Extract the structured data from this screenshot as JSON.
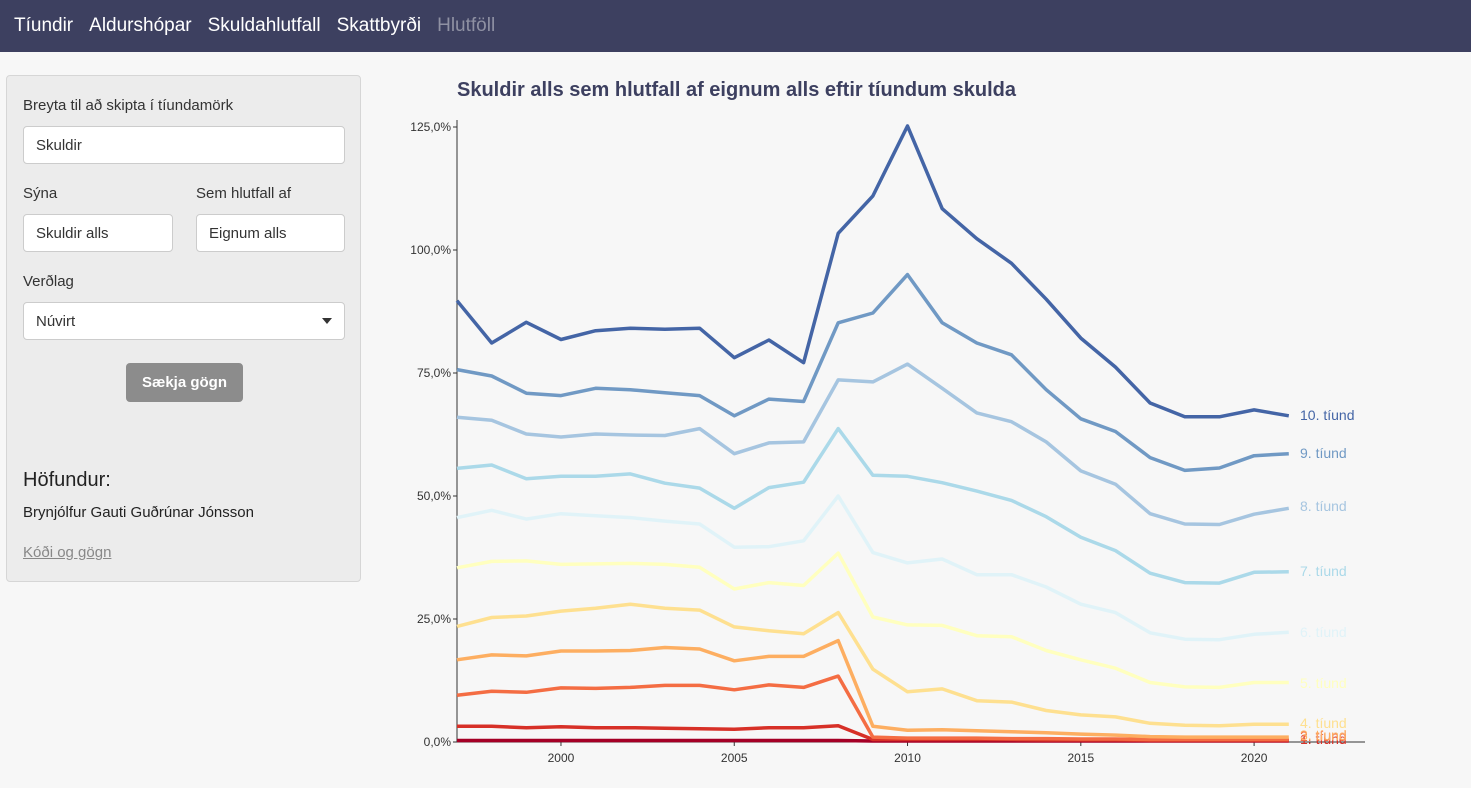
{
  "nav": {
    "items": [
      "Tíundir",
      "Aldurshópar",
      "Skuldahlutfall",
      "Skattbyrði",
      "Hlutföll"
    ],
    "active_index": 4
  },
  "sidebar": {
    "split_label": "Breyta til að skipta í tíundamörk",
    "split_value": "Skuldir",
    "show_label": "Sýna",
    "show_value": "Skuldir alls",
    "ratio_label": "Sem hlutfall af",
    "ratio_value": "Eignum alls",
    "price_label": "Verðlag",
    "price_value": "Núvirt",
    "fetch_button": "Sækja gögn",
    "author_heading": "Höfundur:",
    "author_name": "Brynjólfur Gauti Guðrúnar Jónsson",
    "code_link": "Kóði og gögn"
  },
  "chart_data": {
    "type": "line",
    "title": "Skuldir alls sem hlutfall af eignum alls eftir tíundum skulda",
    "xlabel": "",
    "ylabel": "",
    "xlim": [
      1997,
      2023.2
    ],
    "ylim": [
      0,
      125
    ],
    "x_ticks": [
      2000,
      2005,
      2010,
      2015,
      2020
    ],
    "y_ticks": [
      "0,0%",
      "25,0%",
      "50,0%",
      "75,0%",
      "100,0%",
      "125,0%"
    ],
    "y_tick_values": [
      0,
      25,
      50,
      75,
      100,
      125
    ],
    "x": [
      1997,
      1998,
      1999,
      2000,
      2001,
      2002,
      2003,
      2004,
      2005,
      2006,
      2007,
      2008,
      2009,
      2010,
      2011,
      2012,
      2013,
      2014,
      2015,
      2016,
      2017,
      2018,
      2019,
      2020,
      2021
    ],
    "series": [
      {
        "name": "1. tíund",
        "color": "#a50026",
        "values": [
          0.3,
          0.3,
          0.3,
          0.3,
          0.3,
          0.3,
          0.3,
          0.3,
          0.3,
          0.3,
          0.3,
          0.3,
          0.2,
          0.2,
          0.2,
          0.2,
          0.2,
          0.2,
          0.2,
          0.2,
          0.2,
          0.2,
          0.2,
          0.2,
          0.2
        ]
      },
      {
        "name": "2. tíund",
        "color": "#d73027",
        "values": [
          3.2,
          3.2,
          2.9,
          3.1,
          2.9,
          2.9,
          2.8,
          2.7,
          2.6,
          2.9,
          2.9,
          3.3,
          0.5,
          0.5,
          0.5,
          0.5,
          0.5,
          0.4,
          0.4,
          0.4,
          0.3,
          0.3,
          0.3,
          0.3,
          0.3
        ]
      },
      {
        "name": "3. tíund",
        "color": "#f46d43",
        "values": [
          9.5,
          10.3,
          10.1,
          11.0,
          10.9,
          11.1,
          11.5,
          11.5,
          10.6,
          11.6,
          11.1,
          13.4,
          1.0,
          0.8,
          0.8,
          0.8,
          0.7,
          0.7,
          0.6,
          0.6,
          0.5,
          0.5,
          0.5,
          0.5,
          0.5
        ]
      },
      {
        "name": "4. tíund",
        "color": "#fdae61",
        "values": [
          16.7,
          17.7,
          17.5,
          18.5,
          18.5,
          18.6,
          19.2,
          18.9,
          16.5,
          17.4,
          17.4,
          20.6,
          3.2,
          2.4,
          2.5,
          2.3,
          2.1,
          1.9,
          1.6,
          1.4,
          1.1,
          1.0,
          1.0,
          1.0,
          1.0
        ]
      },
      {
        "name": "5. tíund",
        "color": "#fee090",
        "values": [
          23.5,
          25.3,
          25.6,
          26.6,
          27.2,
          28.0,
          27.2,
          26.8,
          23.4,
          22.6,
          22.0,
          26.3,
          14.8,
          10.2,
          10.8,
          8.4,
          8.1,
          6.4,
          5.5,
          5.1,
          3.8,
          3.4,
          3.3,
          3.6,
          3.6
        ]
      },
      {
        "name": "6. tíund",
        "color": "#ffffbf",
        "values": [
          35.4,
          36.7,
          36.8,
          36.1,
          36.2,
          36.3,
          36.1,
          35.5,
          31.1,
          32.4,
          31.8,
          38.4,
          25.4,
          23.8,
          23.7,
          21.6,
          21.4,
          18.6,
          16.7,
          15.0,
          12.1,
          11.2,
          11.1,
          12.1,
          12.1
        ]
      },
      {
        "name": "7. tíund",
        "color": "#e0f3f8",
        "values": [
          45.6,
          47.1,
          45.3,
          46.4,
          46.0,
          45.6,
          44.9,
          44.3,
          39.6,
          39.7,
          40.9,
          50.0,
          38.5,
          36.4,
          37.2,
          34.0,
          34.0,
          31.5,
          28.0,
          26.3,
          22.2,
          20.9,
          20.8,
          21.9,
          22.3
        ]
      },
      {
        "name": "8. tíund",
        "color": "#abd9e9",
        "values": [
          55.6,
          56.3,
          53.5,
          54.0,
          54.0,
          54.5,
          52.6,
          51.6,
          47.5,
          51.7,
          52.8,
          63.7,
          54.2,
          54.0,
          52.7,
          51.0,
          49.1,
          45.8,
          41.6,
          38.9,
          34.3,
          32.4,
          32.3,
          34.5,
          34.6
        ]
      },
      {
        "name": "9. tíund",
        "color": "#a6c5e0",
        "values": [
          66.0,
          65.4,
          62.6,
          62.0,
          62.6,
          62.4,
          62.3,
          63.7,
          58.6,
          60.8,
          61.0,
          73.6,
          73.2,
          76.8,
          71.9,
          66.9,
          65.1,
          61.0,
          55.1,
          52.4,
          46.4,
          44.3,
          44.2,
          46.3,
          47.5
        ]
      },
      {
        "name": "10. tíund",
        "color": "#7099c4",
        "values": [
          75.7,
          74.4,
          70.9,
          70.4,
          71.9,
          71.6,
          71.0,
          70.4,
          66.3,
          69.7,
          69.2,
          85.2,
          87.2,
          95.0,
          85.2,
          81.1,
          78.7,
          71.6,
          65.7,
          63.1,
          57.8,
          55.2,
          55.7,
          58.2,
          58.6
        ]
      },
      {
        "name": "",
        "color": "#4465a6",
        "values": [
          89.7,
          81.1,
          85.3,
          81.8,
          83.6,
          84.1,
          83.9,
          84.1,
          78.1,
          81.7,
          77.1,
          103.4,
          111.0,
          125.2,
          108.4,
          102.3,
          97.3,
          90.0,
          82.1,
          76.2,
          68.9,
          66.1,
          66.1,
          67.5,
          66.3
        ]
      }
    ],
    "label_colors": [
      "#a50026",
      "#d73027",
      "#f46d43",
      "#fdae61",
      "#fee090",
      "#ffffbf",
      "#e0f3f8",
      "#abd9e9",
      "#a6c5e0",
      "#7099c4",
      "#4465a6"
    ],
    "grid": false,
    "legend": "direct labels at line ends"
  }
}
